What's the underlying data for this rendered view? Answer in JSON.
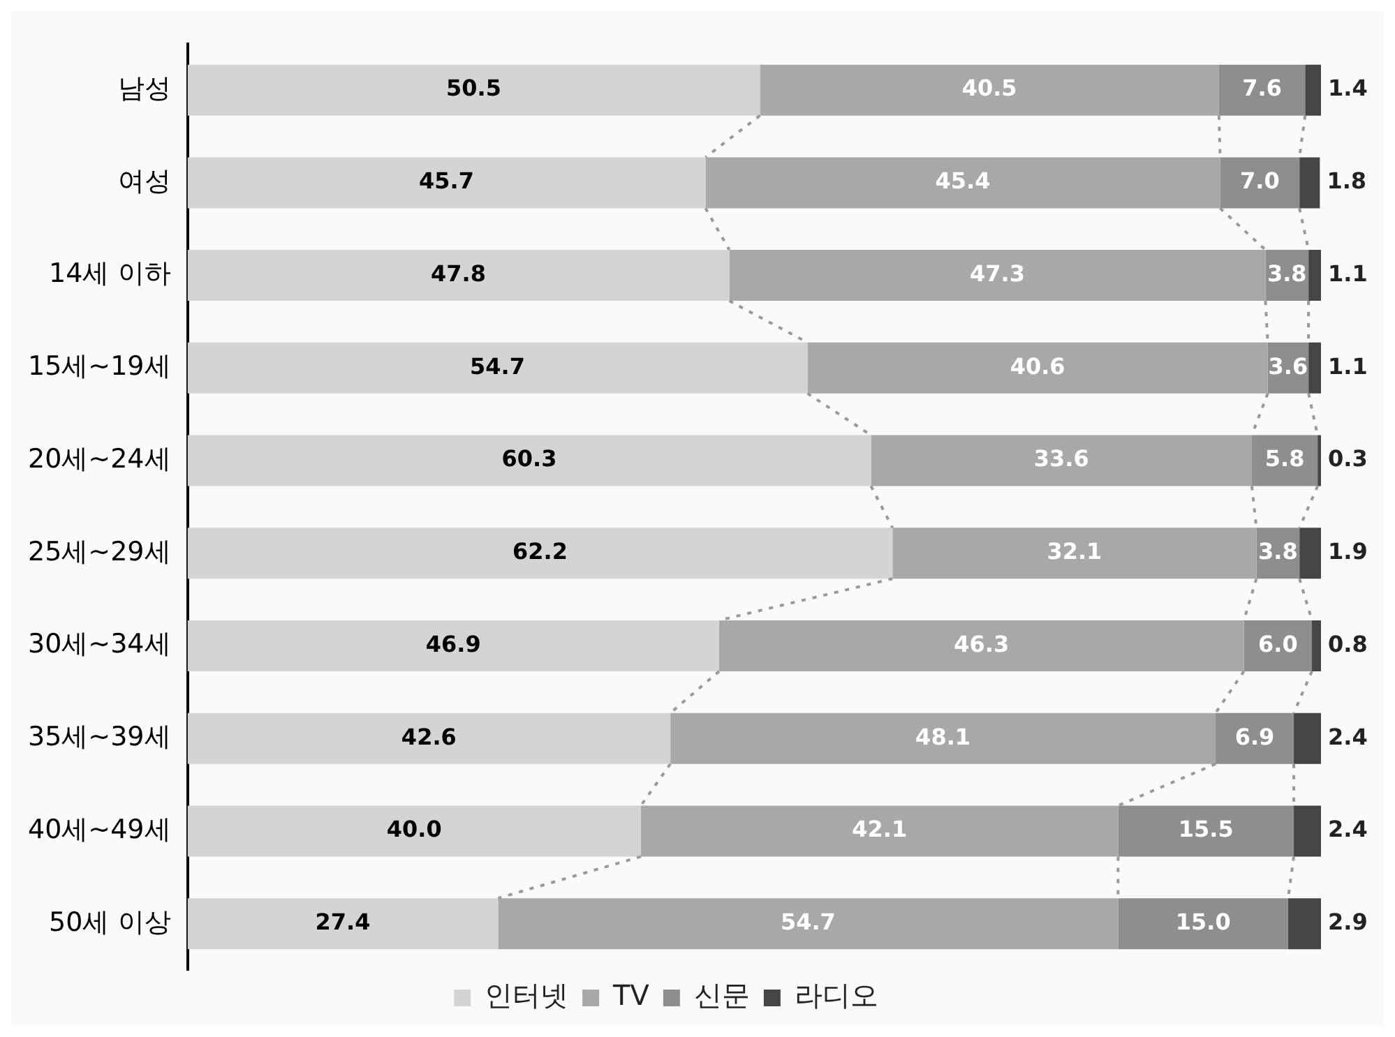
{
  "chart_data": {
    "type": "bar",
    "orientation": "horizontal",
    "stacked": true,
    "legend": "bottom",
    "grid": false,
    "xlim": [
      0,
      100
    ],
    "tick_labels": "y",
    "categories": [
      "남성",
      "여성",
      "14세 이하",
      "15세~19세",
      "20세~24세",
      "25세~29세",
      "30세~34세",
      "35세~39세",
      "40세~49세",
      "50세 이상"
    ],
    "series": [
      {
        "name": "인터넷",
        "color": "#d4d4d4",
        "values": [
          50.5,
          45.7,
          47.8,
          54.7,
          60.3,
          62.2,
          46.9,
          42.6,
          40.0,
          27.4
        ],
        "value_labels": [
          "50.5",
          "45.7",
          "47.8",
          "54.7",
          "60.3",
          "62.2",
          "46.9",
          "42.6",
          "40.0",
          "27.4"
        ]
      },
      {
        "name": "TV",
        "color": "#a8a8a8",
        "values": [
          40.5,
          45.4,
          47.3,
          40.6,
          33.6,
          32.1,
          46.3,
          48.1,
          42.1,
          54.7
        ],
        "value_labels": [
          "40.5",
          "45.4",
          "47.3",
          "40.6",
          "33.6",
          "32.1",
          "46.3",
          "48.1",
          "42.1",
          "54.7"
        ]
      },
      {
        "name": "신문",
        "color": "#8e8e8e",
        "values": [
          7.6,
          7.0,
          3.8,
          3.6,
          5.8,
          3.8,
          6.0,
          6.9,
          15.5,
          15.0
        ],
        "value_labels": [
          "7.6",
          "7.0",
          "3.8",
          "3.6",
          "5.8",
          "3.8",
          "6.0",
          "6.9",
          "15.5",
          "15.0"
        ]
      },
      {
        "name": "라디오",
        "color": "#454545",
        "values": [
          1.4,
          1.8,
          1.1,
          1.1,
          0.3,
          1.9,
          0.8,
          2.4,
          2.4,
          2.9
        ],
        "value_labels": [
          "1.4",
          "1.8",
          "1.1",
          "1.1",
          "0.3",
          "1.9",
          "0.8",
          "2.4",
          "2.4",
          "2.9"
        ]
      }
    ]
  }
}
